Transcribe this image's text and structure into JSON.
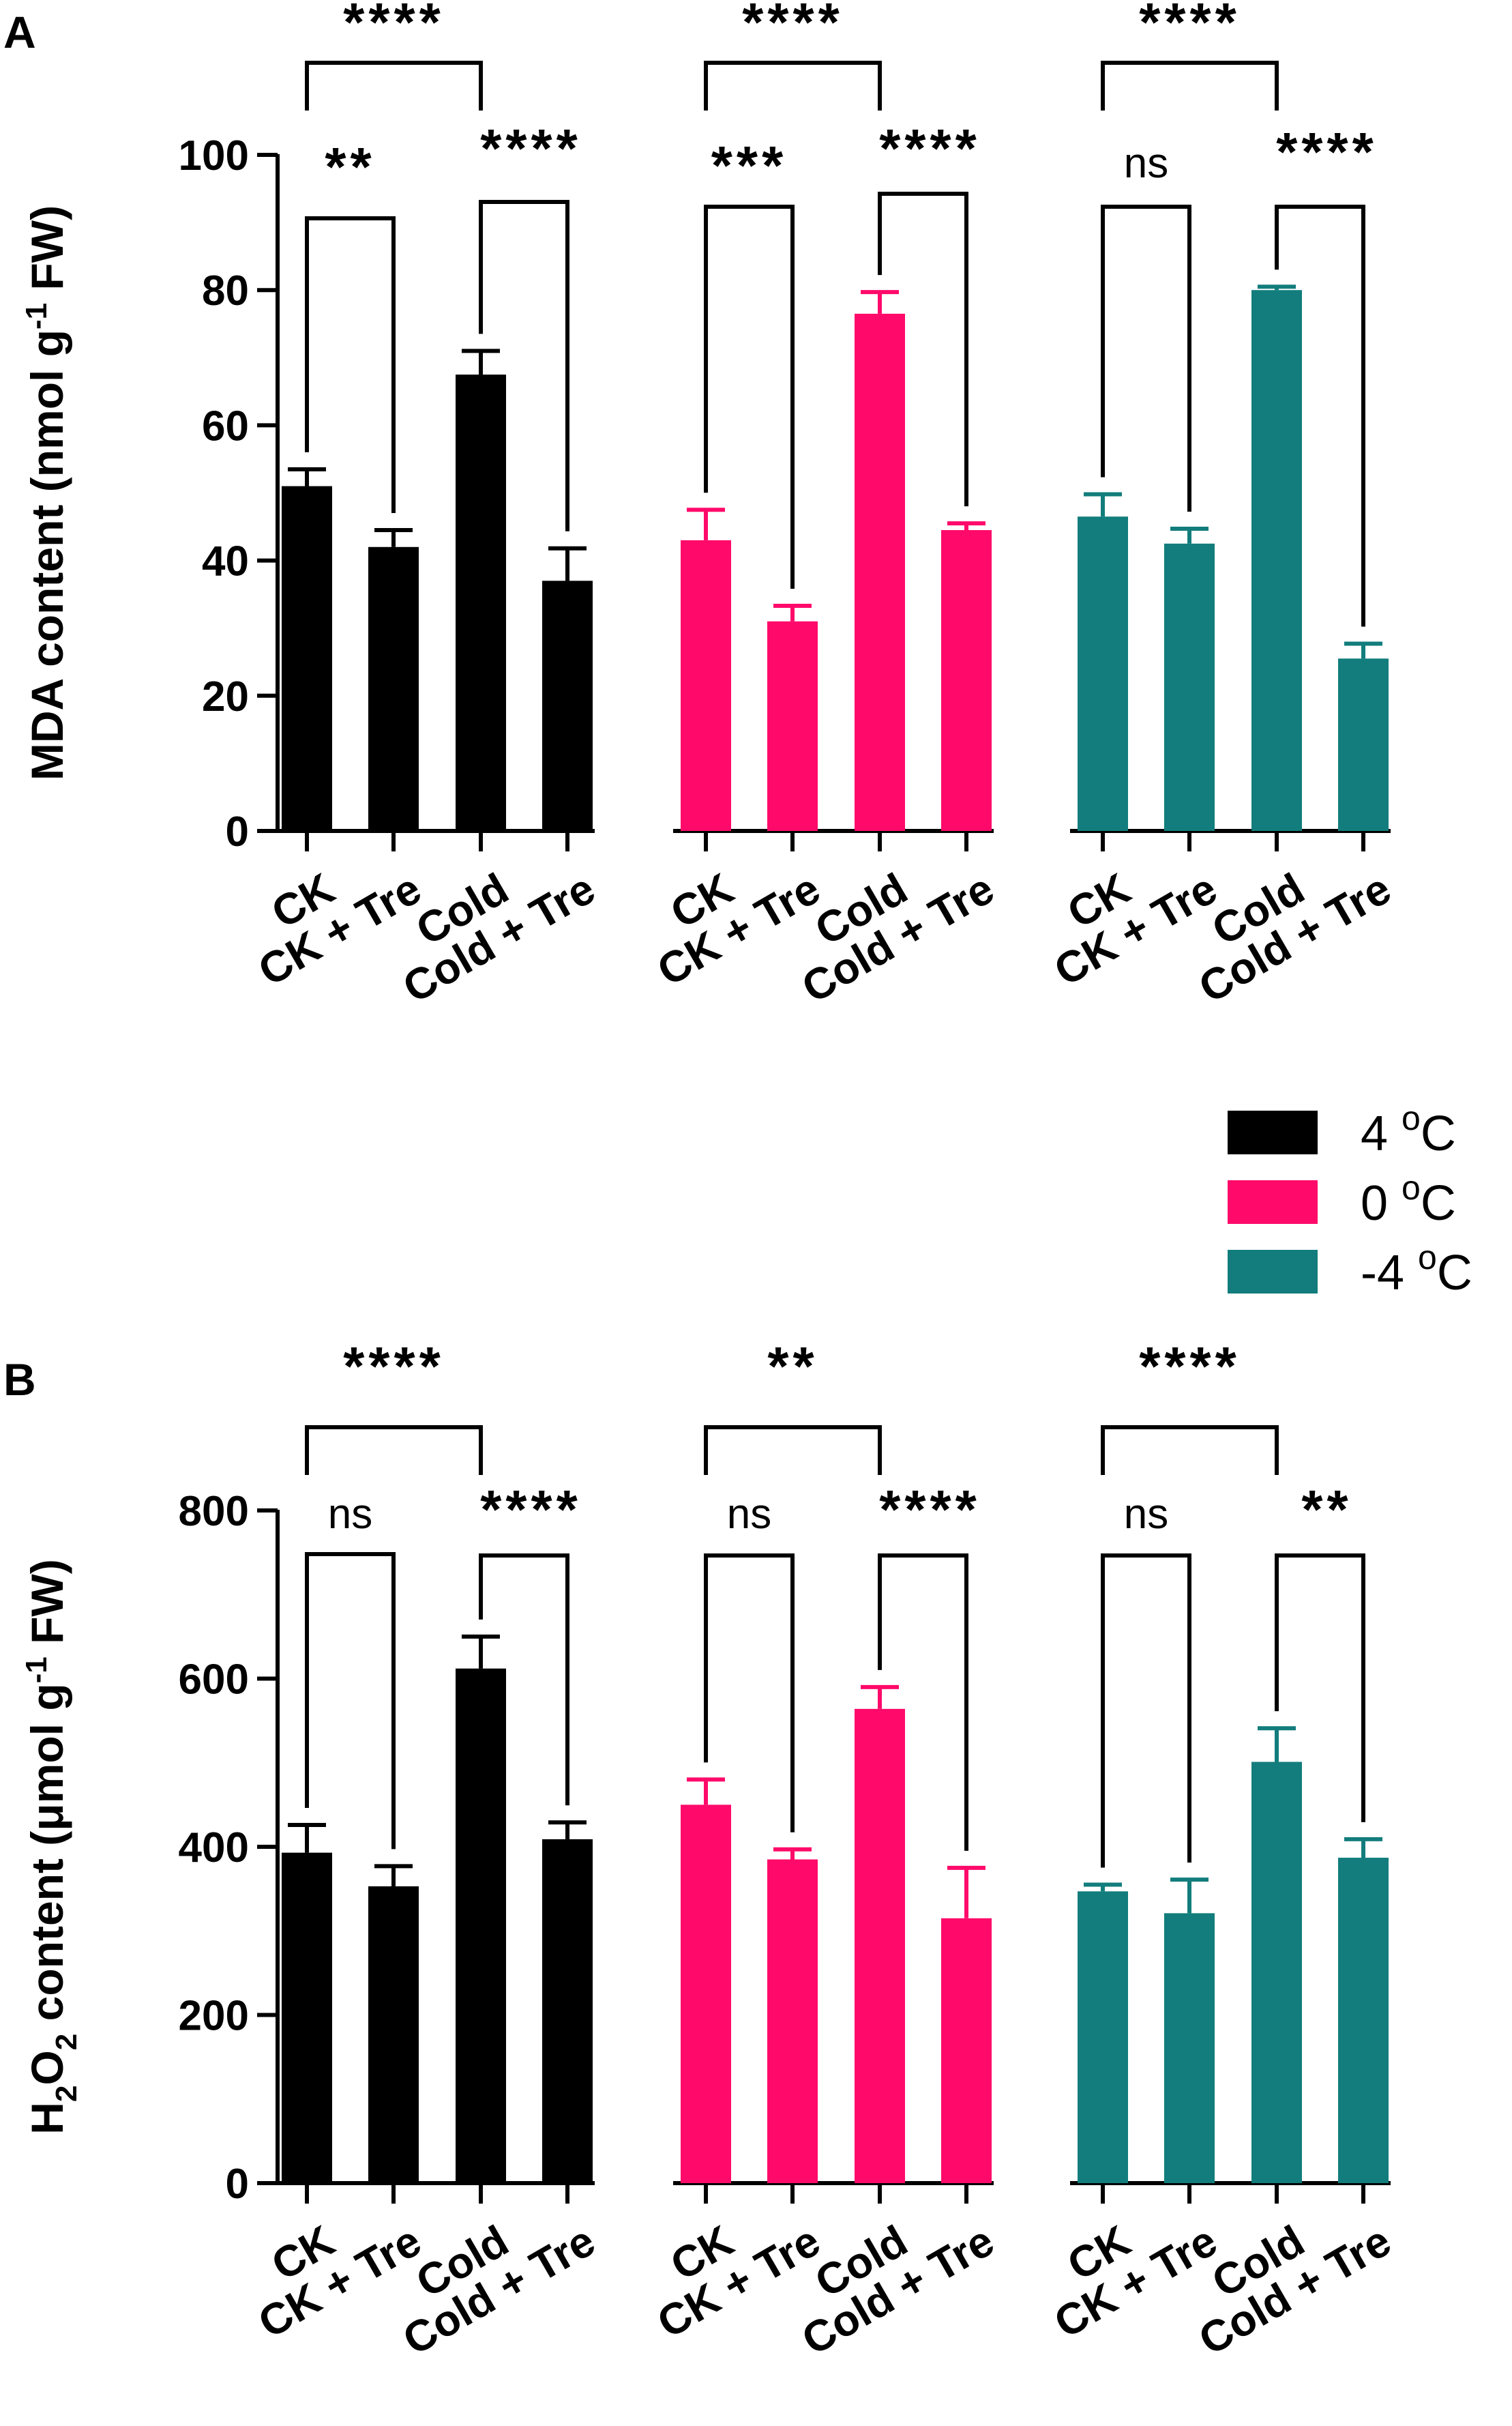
{
  "colors": {
    "axis": "#000000",
    "group_4C": "#000000",
    "group_0C": "#ff0a6a",
    "group_m4C": "#127d7c"
  },
  "legend": {
    "items": [
      {
        "label_main": "4 ",
        "label_sup": "o",
        "label_end": "C",
        "color_key": "group_4C"
      },
      {
        "label_main": "0 ",
        "label_sup": "o",
        "label_end": "C",
        "color_key": "group_0C"
      },
      {
        "label_main": "-4 ",
        "label_sup": "o",
        "label_end": "C",
        "color_key": "group_m4C"
      }
    ]
  },
  "chart_data": [
    {
      "panel": "A",
      "type": "bar",
      "ylabel": {
        "pre": "MDA content (nmol g",
        "sup": "-1",
        "post": " FW)"
      },
      "ylim": [
        0,
        100
      ],
      "yticks": [
        0,
        20,
        40,
        60,
        80,
        100
      ],
      "categories": [
        "CK",
        "CK + Tre",
        "Cold",
        "Cold + Tre"
      ],
      "series": [
        {
          "name": "4 °C",
          "color_key": "group_4C",
          "values": [
            51,
            42,
            67.5,
            37
          ],
          "errors": [
            2.5,
            2.5,
            3.5,
            4.8
          ]
        },
        {
          "name": "0 °C",
          "color_key": "group_0C",
          "values": [
            43,
            31,
            76.5,
            44.5
          ],
          "errors": [
            4.5,
            2.3,
            3.2,
            1
          ]
        },
        {
          "name": "-4 °C",
          "color_key": "group_m4C",
          "values": [
            46.5,
            42.5,
            80,
            25.5
          ],
          "errors": [
            3.3,
            2.2,
            0.5,
            2.2
          ]
        }
      ],
      "significance": [
        {
          "group": 0,
          "top": [
            "****"
          ],
          "lower_left": "**",
          "lower_right": "****"
        },
        {
          "group": 1,
          "top": [
            "****"
          ],
          "lower_left": "***",
          "lower_right": "****"
        },
        {
          "group": 2,
          "top": [
            "****"
          ],
          "lower_left": "ns",
          "lower_right": "****"
        }
      ]
    },
    {
      "panel": "B",
      "type": "bar",
      "ylabel": {
        "pre": "H",
        "sub1": "2",
        "mid": "O",
        "sub2": "2",
        "post1": " content (μmol g",
        "sup": "-1",
        "post2": " FW)"
      },
      "ylim": [
        0,
        800
      ],
      "yticks": [
        0,
        200,
        400,
        600,
        800
      ],
      "categories": [
        "CK",
        "CK + Tre",
        "Cold",
        "Cold + Tre"
      ],
      "series": [
        {
          "name": "4 °C",
          "color_key": "group_4C",
          "values": [
            393,
            353,
            612,
            409
          ],
          "errors": [
            33,
            24,
            38,
            20
          ]
        },
        {
          "name": "0 °C",
          "color_key": "group_0C",
          "values": [
            450,
            385,
            564,
            315
          ],
          "errors": [
            30,
            12,
            26,
            60
          ]
        },
        {
          "name": "-4 °C",
          "color_key": "group_m4C",
          "values": [
            347,
            321,
            501,
            387
          ],
          "errors": [
            8,
            40,
            40,
            22
          ]
        }
      ],
      "significance": [
        {
          "group": 0,
          "top": [
            "****"
          ],
          "lower_left": "ns",
          "lower_right": "****"
        },
        {
          "group": 1,
          "top": [
            "**"
          ],
          "lower_left": "ns",
          "lower_right": "****"
        },
        {
          "group": 2,
          "top": [
            "****"
          ],
          "lower_left": "ns",
          "lower_right": "**"
        }
      ]
    }
  ]
}
